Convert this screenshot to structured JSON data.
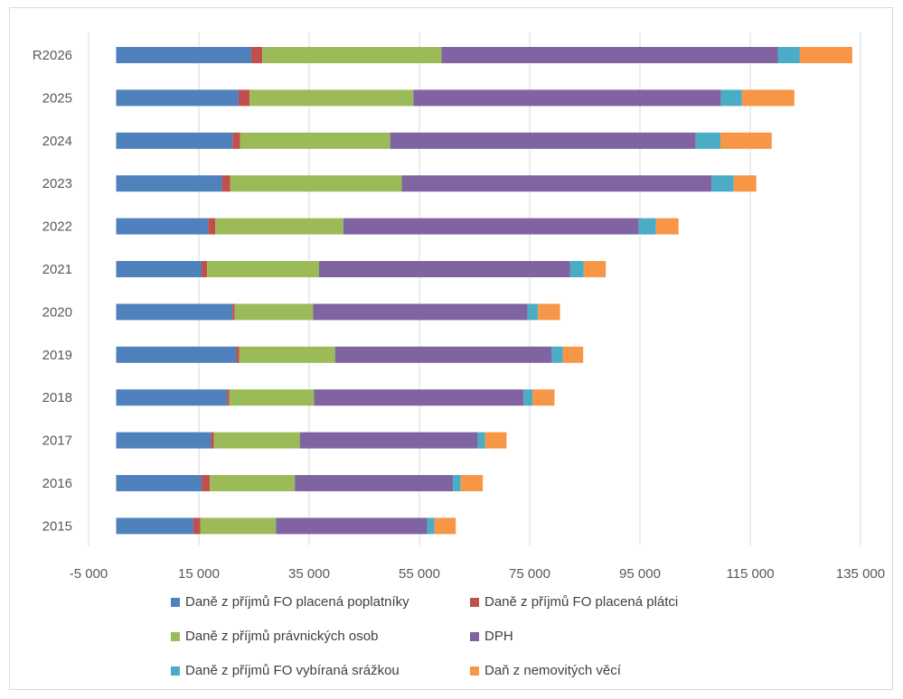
{
  "chart_data": {
    "type": "bar",
    "orientation": "horizontal",
    "stacked": true,
    "title": "",
    "xlabel": "",
    "ylabel": "",
    "xlim": [
      -5000,
      135000
    ],
    "x_ticks": [
      -5000,
      15000,
      35000,
      55000,
      75000,
      95000,
      115000,
      135000
    ],
    "x_tick_labels": [
      "-5 000",
      "15 000",
      "35 000",
      "55 000",
      "75 000",
      "95 000",
      "115 000",
      "135 000"
    ],
    "grid": "vertical",
    "legend_position": "bottom",
    "categories": [
      "R2026",
      "2025",
      "2024",
      "2023",
      "2022",
      "2021",
      "2020",
      "2019",
      "2018",
      "2017",
      "2016",
      "2015"
    ],
    "series": [
      {
        "name": "Daně z příjmů FO placená poplatníky",
        "color": "#4f81bd",
        "values": [
          24500,
          22200,
          21100,
          19200,
          16700,
          15500,
          21100,
          21800,
          20100,
          17200,
          15500,
          14000
        ]
      },
      {
        "name": "Daně z příjmů FO placená plátci",
        "color": "#c0504d",
        "values": [
          2000,
          2000,
          1400,
          1500,
          1300,
          1000,
          400,
          500,
          400,
          500,
          1500,
          1300
        ]
      },
      {
        "name": "Daně z příjmů právnických osob",
        "color": "#9bbb59",
        "values": [
          32500,
          29700,
          27200,
          31100,
          23200,
          20300,
          14200,
          17400,
          15400,
          15600,
          15400,
          13700
        ]
      },
      {
        "name": "DPH",
        "color": "#8064a2",
        "values": [
          61000,
          55800,
          55400,
          56200,
          53600,
          45500,
          38900,
          39300,
          38000,
          32300,
          28700,
          27400
        ]
      },
      {
        "name": "Daně z příjmů FO vybíraná srážkou",
        "color": "#4bacc6",
        "values": [
          4000,
          3800,
          4500,
          4000,
          3100,
          2500,
          1900,
          2000,
          1600,
          1300,
          1400,
          1300
        ]
      },
      {
        "name": "Daň z nemovitých věcí",
        "color": "#f79646",
        "values": [
          9500,
          9500,
          9300,
          4100,
          4100,
          4000,
          4000,
          3700,
          4000,
          3900,
          4000,
          3900
        ]
      }
    ]
  }
}
